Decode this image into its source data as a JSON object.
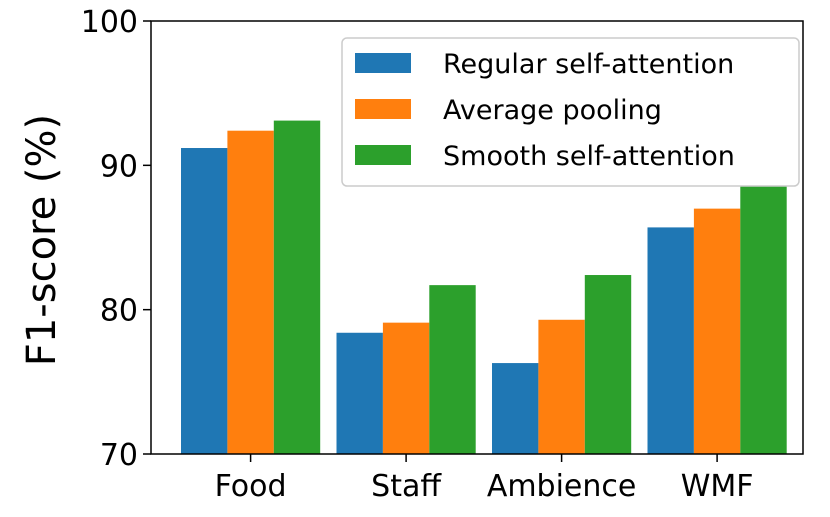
{
  "chart_data": {
    "type": "bar",
    "title": "",
    "xlabel": "",
    "ylabel": "F1-score (%)",
    "ylim": [
      70,
      100
    ],
    "yticks": [
      70,
      80,
      90,
      100
    ],
    "categories": [
      "Food",
      "Staff",
      "Ambience",
      "WMF"
    ],
    "series": [
      {
        "name": "Regular self-attention",
        "color": "#1f77b4",
        "values": [
          91.2,
          78.4,
          76.3,
          85.7
        ]
      },
      {
        "name": "Average pooling",
        "color": "#ff7f0e",
        "values": [
          92.4,
          79.1,
          79.3,
          87.0
        ]
      },
      {
        "name": "Smooth self-attention",
        "color": "#2ca02c",
        "values": [
          93.1,
          81.7,
          82.4,
          88.6
        ]
      }
    ],
    "legend_position": "top-right",
    "grid": false
  }
}
